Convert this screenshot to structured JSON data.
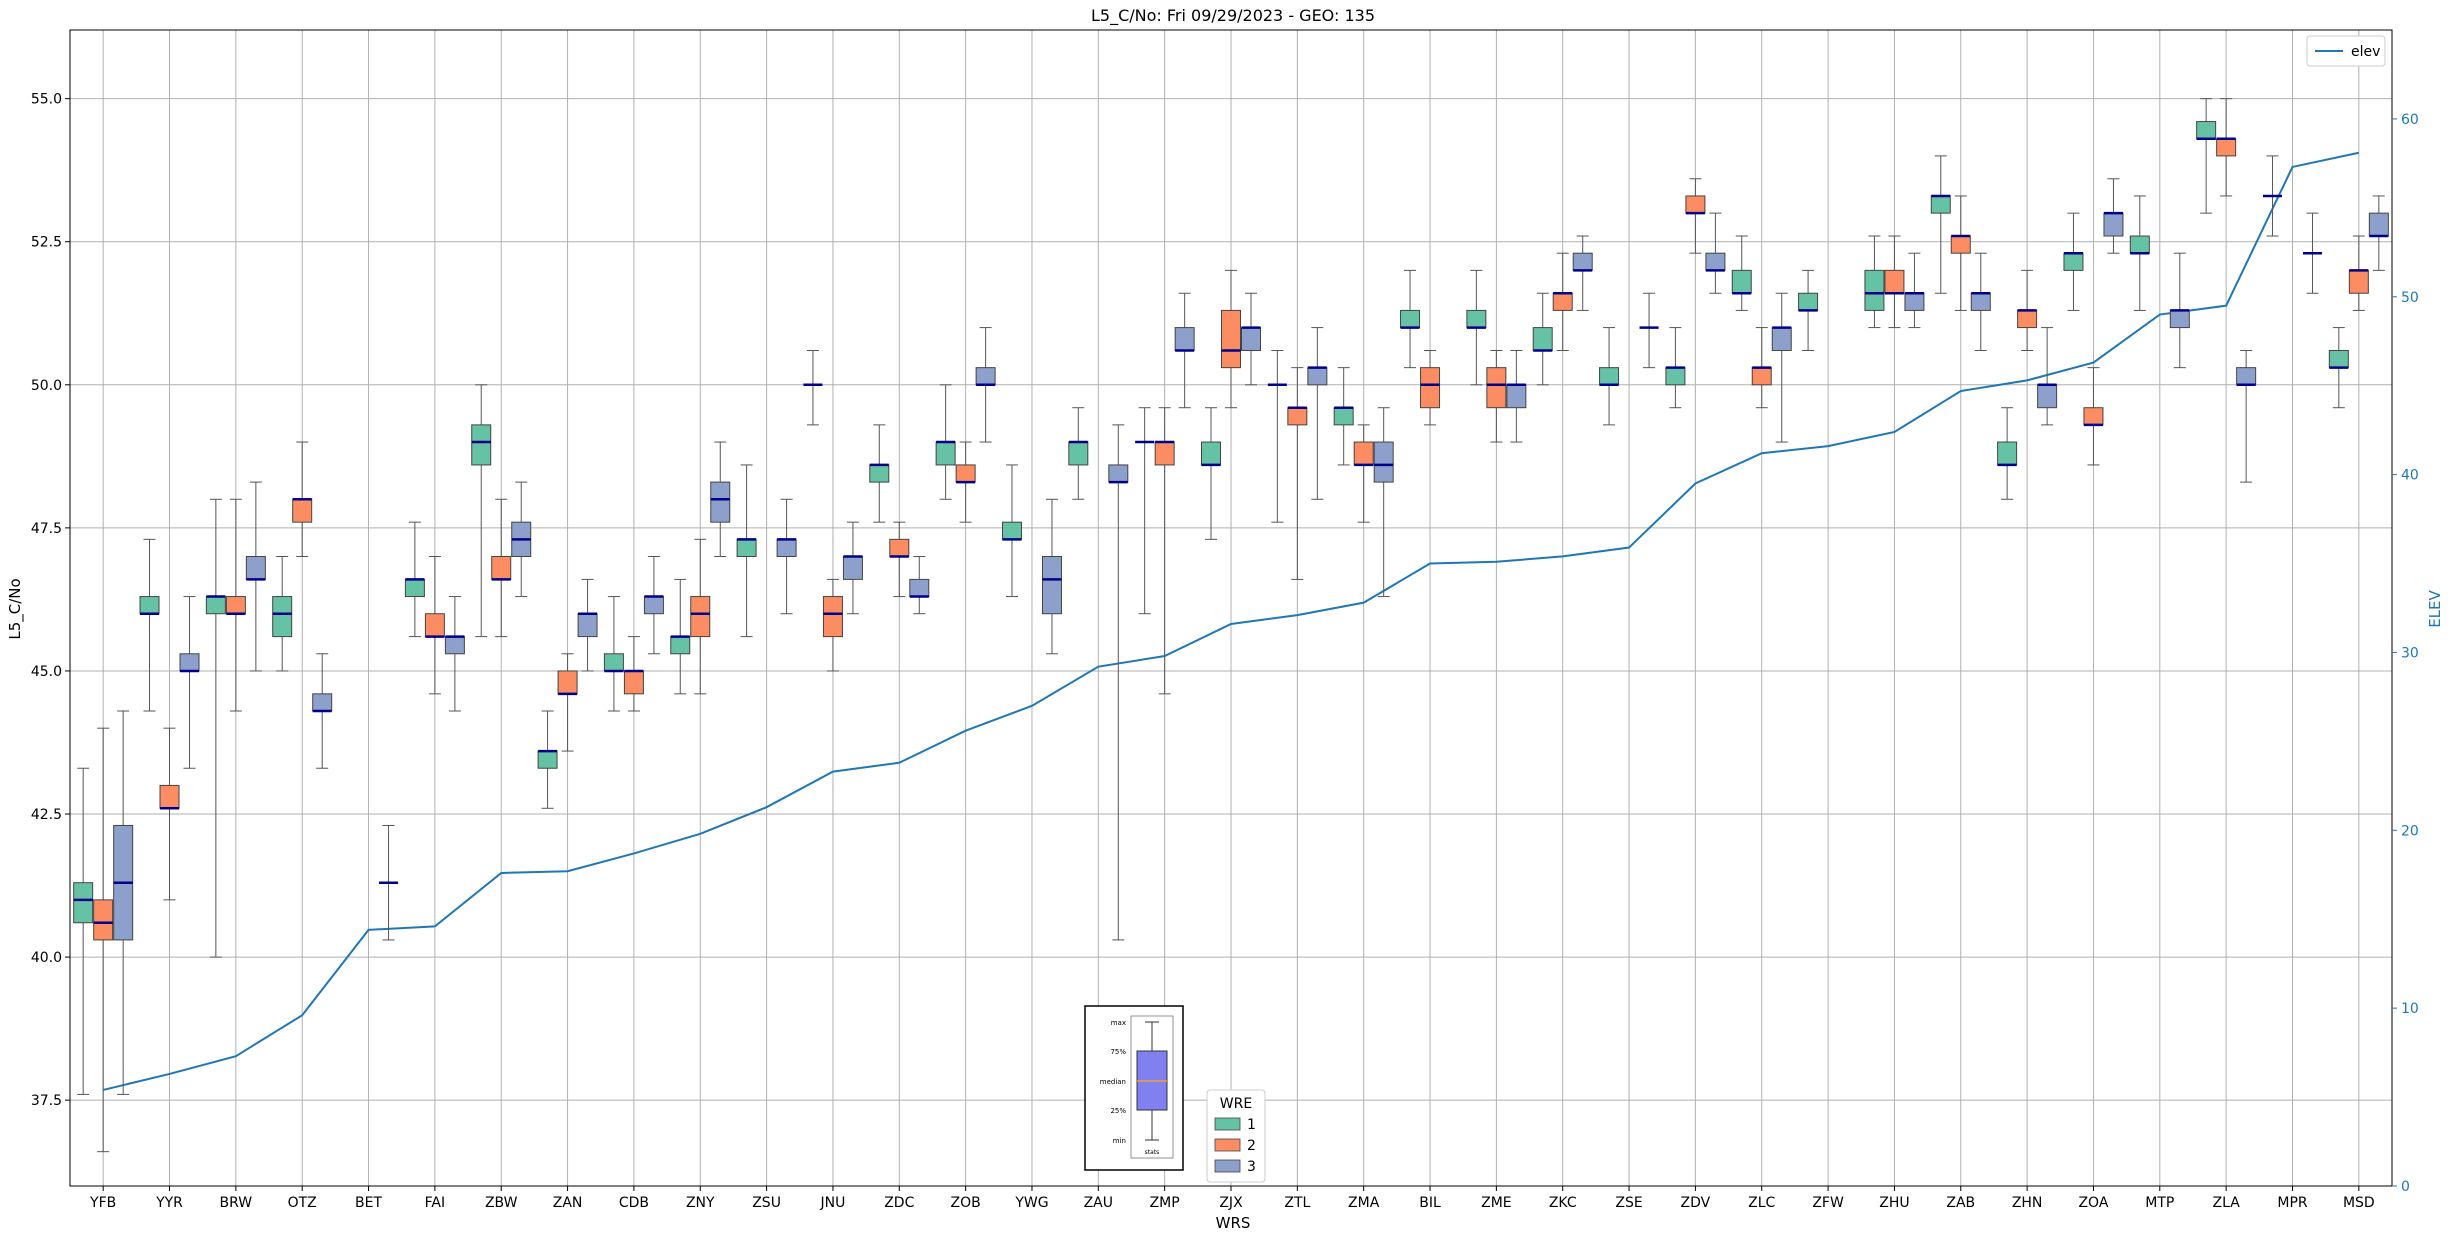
{
  "chart_data": {
    "type": "box",
    "title": "L5_C/No: Fri 09/29/2023 - GEO: 135",
    "xlabel": "WRS",
    "ylabel": "L5_C/No",
    "y2label": "ELEV",
    "ylim": [
      36.0,
      56.2
    ],
    "y2lim": [
      0,
      65
    ],
    "yticks": [
      "37.5",
      "40.0",
      "42.5",
      "45.0",
      "47.5",
      "50.0",
      "52.5",
      "55.0"
    ],
    "y2ticks": [
      "0",
      "10",
      "20",
      "30",
      "40",
      "50",
      "60"
    ],
    "grid": true,
    "categories": [
      "YFB",
      "YYR",
      "BRW",
      "OTZ",
      "BET",
      "FAI",
      "ZBW",
      "ZAN",
      "CDB",
      "ZNY",
      "ZSU",
      "JNU",
      "ZDC",
      "ZOB",
      "YWG",
      "ZAU",
      "ZMP",
      "ZJX",
      "ZTL",
      "ZMA",
      "BIL",
      "ZME",
      "ZKC",
      "ZSE",
      "ZDV",
      "ZLC",
      "ZFW",
      "ZHU",
      "ZAB",
      "ZHN",
      "ZOA",
      "MTP",
      "ZLA",
      "MPR",
      "MSD"
    ],
    "colors": {
      "1": "#66c2a5",
      "2": "#fc8d62",
      "3": "#8da0cb",
      "median": "#00008b",
      "elev": "#1f77b4"
    },
    "series": [
      {
        "name": "1",
        "boxes": [
          [
            37.6,
            40.6,
            41.0,
            41.3,
            43.3
          ],
          [
            44.3,
            46.0,
            46.0,
            46.3,
            47.3
          ],
          [
            40.0,
            46.0,
            46.3,
            46.3,
            48.0
          ],
          [
            45.0,
            45.6,
            46.0,
            46.3,
            47.0
          ],
          null,
          [
            45.6,
            46.3,
            46.6,
            46.6,
            47.6
          ],
          [
            45.6,
            48.6,
            49.0,
            49.3,
            50.0
          ],
          [
            42.6,
            43.3,
            43.6,
            43.6,
            44.3
          ],
          [
            44.3,
            45.0,
            45.0,
            45.3,
            46.3
          ],
          [
            44.6,
            45.3,
            45.6,
            45.6,
            46.6
          ],
          [
            45.6,
            47.0,
            47.3,
            47.3,
            48.6
          ],
          [
            49.3,
            50.0,
            50.0,
            50.0,
            50.6
          ],
          [
            47.6,
            48.3,
            48.6,
            48.6,
            49.3
          ],
          [
            48.0,
            48.6,
            49.0,
            49.0,
            50.0
          ],
          [
            46.3,
            47.3,
            47.3,
            47.6,
            48.6
          ],
          [
            48.0,
            48.6,
            49.0,
            49.0,
            49.6
          ],
          [
            46.0,
            49.0,
            49.0,
            49.0,
            49.6
          ],
          [
            47.3,
            48.6,
            48.6,
            49.0,
            49.6
          ],
          [
            47.6,
            50.0,
            50.0,
            50.0,
            50.6
          ],
          [
            48.6,
            49.3,
            49.6,
            49.6,
            50.3
          ],
          [
            50.3,
            51.0,
            51.0,
            51.3,
            52.0
          ],
          [
            50.0,
            51.0,
            51.0,
            51.3,
            52.0
          ],
          [
            50.0,
            50.6,
            50.6,
            51.0,
            51.6
          ],
          [
            49.3,
            50.0,
            50.0,
            50.3,
            51.0
          ],
          [
            49.6,
            50.0,
            50.3,
            50.3,
            51.0
          ],
          [
            51.3,
            51.6,
            51.6,
            52.0,
            52.6
          ],
          [
            50.6,
            51.3,
            51.3,
            51.6,
            52.0
          ],
          [
            51.0,
            51.3,
            51.6,
            52.0,
            52.6
          ],
          [
            51.6,
            53.0,
            53.3,
            53.3,
            54.0
          ],
          [
            48.0,
            48.6,
            48.6,
            49.0,
            49.6
          ],
          [
            51.3,
            52.0,
            52.3,
            52.3,
            53.0
          ],
          [
            51.3,
            52.3,
            52.3,
            52.6,
            53.3
          ],
          [
            53.0,
            54.3,
            54.3,
            54.6,
            55.0
          ],
          [
            52.6,
            53.3,
            53.3,
            53.3,
            54.0
          ],
          [
            49.6,
            50.3,
            50.3,
            50.6,
            51.0
          ]
        ]
      },
      {
        "name": "2",
        "boxes": [
          [
            36.6,
            40.3,
            40.6,
            41.0,
            44.0
          ],
          [
            41.0,
            42.6,
            42.6,
            43.0,
            44.0
          ],
          [
            44.3,
            46.0,
            46.0,
            46.3,
            48.0
          ],
          [
            47.0,
            47.6,
            48.0,
            48.0,
            49.0
          ],
          null,
          [
            44.6,
            45.6,
            45.6,
            46.0,
            47.0
          ],
          [
            45.6,
            46.6,
            46.6,
            47.0,
            48.0
          ],
          [
            43.6,
            44.6,
            44.6,
            45.0,
            45.3
          ],
          [
            44.3,
            44.6,
            45.0,
            45.0,
            45.6
          ],
          [
            44.6,
            45.6,
            46.0,
            46.3,
            47.3
          ],
          null,
          [
            45.0,
            45.6,
            46.0,
            46.3,
            46.6
          ],
          [
            46.3,
            47.0,
            47.0,
            47.3,
            47.6
          ],
          [
            47.6,
            48.3,
            48.3,
            48.6,
            49.0
          ],
          null,
          null,
          [
            44.6,
            48.6,
            49.0,
            49.0,
            49.6
          ],
          [
            49.6,
            50.3,
            50.6,
            51.3,
            52.0
          ],
          [
            46.6,
            49.3,
            49.6,
            49.6,
            50.3
          ],
          [
            47.6,
            48.6,
            48.6,
            49.0,
            49.3
          ],
          [
            49.3,
            49.6,
            50.0,
            50.3,
            50.6
          ],
          [
            49.0,
            49.6,
            50.0,
            50.3,
            50.6
          ],
          [
            50.6,
            51.3,
            51.6,
            51.6,
            52.3
          ],
          null,
          [
            52.3,
            53.0,
            53.0,
            53.3,
            53.6
          ],
          [
            49.6,
            50.0,
            50.3,
            50.3,
            51.0
          ],
          null,
          [
            51.0,
            51.6,
            51.6,
            52.0,
            52.6
          ],
          [
            51.3,
            52.3,
            52.6,
            52.6,
            53.3
          ],
          [
            50.6,
            51.0,
            51.3,
            51.3,
            52.0
          ],
          [
            48.6,
            49.3,
            49.3,
            49.6,
            50.3
          ],
          null,
          [
            53.3,
            54.0,
            54.3,
            54.3,
            55.0
          ],
          null,
          [
            51.3,
            51.6,
            52.0,
            52.0,
            52.6
          ]
        ]
      },
      {
        "name": "3",
        "boxes": [
          [
            37.6,
            40.3,
            41.3,
            42.3,
            44.3
          ],
          [
            43.3,
            45.0,
            45.0,
            45.3,
            46.3
          ],
          [
            45.0,
            46.6,
            46.6,
            47.0,
            48.3
          ],
          [
            43.3,
            44.3,
            44.3,
            44.6,
            45.3
          ],
          [
            40.3,
            41.3,
            41.3,
            41.3,
            42.3
          ],
          [
            44.3,
            45.3,
            45.6,
            45.6,
            46.3
          ],
          [
            46.3,
            47.0,
            47.3,
            47.6,
            48.3
          ],
          [
            45.0,
            45.6,
            46.0,
            46.0,
            46.6
          ],
          [
            45.3,
            46.0,
            46.3,
            46.3,
            47.0
          ],
          [
            47.0,
            47.6,
            48.0,
            48.3,
            49.0
          ],
          [
            46.0,
            47.0,
            47.3,
            47.3,
            48.0
          ],
          [
            46.0,
            46.6,
            47.0,
            47.0,
            47.6
          ],
          [
            46.0,
            46.3,
            46.3,
            46.6,
            47.0
          ],
          [
            49.0,
            50.0,
            50.0,
            50.3,
            51.0
          ],
          [
            45.3,
            46.0,
            46.6,
            47.0,
            48.0
          ],
          [
            40.3,
            48.3,
            48.3,
            48.6,
            49.3
          ],
          [
            49.6,
            50.6,
            50.6,
            51.0,
            51.6
          ],
          [
            50.0,
            50.6,
            51.0,
            51.0,
            51.6
          ],
          [
            48.0,
            50.0,
            50.3,
            50.3,
            51.0
          ],
          [
            46.3,
            48.3,
            48.6,
            49.0,
            49.6
          ],
          null,
          [
            49.0,
            49.6,
            50.0,
            50.0,
            50.6
          ],
          [
            51.3,
            52.0,
            52.0,
            52.3,
            52.6
          ],
          [
            50.3,
            51.0,
            51.0,
            51.0,
            51.6
          ],
          [
            51.6,
            52.0,
            52.0,
            52.3,
            53.0
          ],
          [
            49.0,
            50.6,
            51.0,
            51.0,
            51.6
          ],
          null,
          [
            51.0,
            51.3,
            51.6,
            51.6,
            52.3
          ],
          [
            50.6,
            51.3,
            51.6,
            51.6,
            52.3
          ],
          [
            49.3,
            49.6,
            50.0,
            50.0,
            51.0
          ],
          [
            52.3,
            52.6,
            53.0,
            53.0,
            53.6
          ],
          [
            50.3,
            51.0,
            51.3,
            51.3,
            52.3
          ],
          [
            48.3,
            50.0,
            50.0,
            50.3,
            50.6
          ],
          [
            51.6,
            52.3,
            52.3,
            52.3,
            53.0
          ],
          [
            52.0,
            52.6,
            52.6,
            53.0,
            53.3
          ]
        ]
      }
    ],
    "elev": {
      "name": "elev",
      "values": [
        5.4,
        6.3,
        7.3,
        9.6,
        14.4,
        14.6,
        17.6,
        17.7,
        18.7,
        19.8,
        21.3,
        23.3,
        23.8,
        25.6,
        27.0,
        29.2,
        29.8,
        31.6,
        32.1,
        32.8,
        35.0,
        35.1,
        35.4,
        35.9,
        39.5,
        41.2,
        41.6,
        42.4,
        44.7,
        45.3,
        46.3,
        49.0,
        49.5,
        57.3,
        58.1
      ]
    },
    "legend": {
      "title": "WRE",
      "items": [
        "1",
        "2",
        "3"
      ],
      "elev_label": "elev",
      "elev_position": "top-right",
      "wre_position": "bottom-center"
    },
    "key": {
      "labels": [
        "max",
        "75%",
        "median",
        "25%",
        "min"
      ],
      "caption": "stats"
    }
  }
}
